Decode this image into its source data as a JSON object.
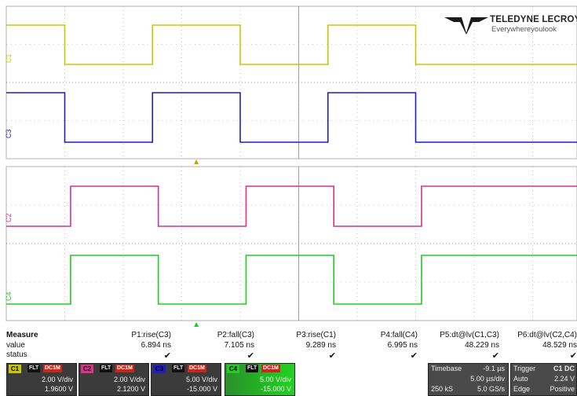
{
  "logo": {
    "brand": "TELEDYNE LECROY",
    "tagline": "Everywhereyoulook"
  },
  "colors": {
    "c1": "#c8c800",
    "c2": "#d9338a",
    "c3": "#1f1fbf",
    "c4": "#22cc22",
    "grid": "#9a9a9a",
    "trigger_marker": "#c8a000",
    "trigger_marker_lower": "#22cc22"
  },
  "channel_labels": {
    "c1": "C1",
    "c2": "C2",
    "c3": "C3",
    "c4": "C4"
  },
  "measure": {
    "headers": [
      "Measure",
      "value",
      "status"
    ],
    "params": [
      {
        "name": "P1:rise(C3)",
        "value": "6.894 ns",
        "status": "✔"
      },
      {
        "name": "P2:fall(C3)",
        "value": "7.105 ns",
        "status": "✔"
      },
      {
        "name": "P3:rise(C1)",
        "value": "9.289 ns",
        "status": "✔"
      },
      {
        "name": "P4:fall(C4)",
        "value": "6.995 ns",
        "status": "✔"
      },
      {
        "name": "P5:dt@lv(C1,C3)",
        "value": "48.229 ns",
        "status": "✔"
      },
      {
        "name": "P6:dt@lv(C2,C4)",
        "value": "48.529 ns",
        "status": "✔"
      }
    ]
  },
  "channels": [
    {
      "tag": "C1",
      "flt": "FLT",
      "coupling": "DC1M",
      "vdiv": "2.00 V/div",
      "offset": "1.9600 V"
    },
    {
      "tag": "C2",
      "flt": "FLT",
      "coupling": "DC1M",
      "vdiv": "2.00 V/div",
      "offset": "2.1200 V"
    },
    {
      "tag": "C3",
      "flt": "FLT",
      "coupling": "DC1M",
      "vdiv": "5.00 V/div",
      "offset": "-15.000 V"
    },
    {
      "tag": "C4",
      "flt": "FLT",
      "coupling": "DC1M",
      "vdiv": "5.00 V/div",
      "offset": "-15.000 V"
    }
  ],
  "timebase": {
    "label": "Timebase",
    "delay": "-9.1 µs",
    "per_div": "5.00 µs/div",
    "samples": "250 kS",
    "rate": "5.0 GS/s"
  },
  "trigger": {
    "label": "Trigger",
    "source": "C1 DC",
    "mode": "Auto",
    "level": "2.24 V",
    "type": "Edge",
    "slope": "Positive"
  },
  "waveforms": {
    "c1_edges_div": [
      1.0,
      2.5,
      4.0,
      5.5,
      7.0
    ],
    "c1_start_high": true,
    "c3_edges_div": [
      1.0,
      2.5,
      4.0,
      5.5,
      7.0
    ],
    "c3_start_high": true,
    "c2_edges_div": [
      1.1,
      2.6,
      4.1,
      5.6,
      7.1
    ],
    "c2_start_high": false,
    "c4_edges_div": [
      1.1,
      2.6,
      4.1,
      5.6,
      7.1
    ],
    "c4_start_high": false
  }
}
